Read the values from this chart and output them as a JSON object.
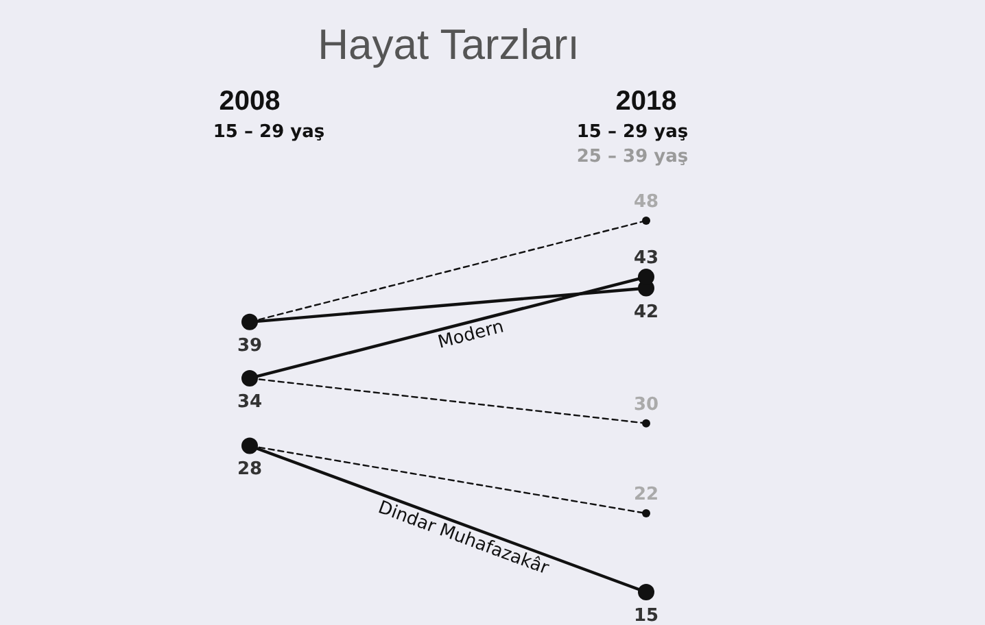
{
  "chart_data": {
    "type": "line",
    "title": "Hayat Tarzları",
    "categories": [
      "2008",
      "2018"
    ],
    "annotations": [
      "15 – 29 yaş",
      "15 – 29 yaş",
      "25 – 39 yaş"
    ],
    "tick_labels": "x",
    "series": [
      {
        "color": "#111111",
        "values": [
          39,
          42
        ],
        "value_labels": [
          "39",
          "42"
        ],
        "line_style": "solid",
        "marker": "circle"
      },
      {
        "name": "Modern",
        "color": "#111111",
        "values": [
          34,
          43
        ],
        "value_labels": [
          "34",
          "43"
        ],
        "line_style": "solid",
        "marker": "circle"
      },
      {
        "name": "Dindar Muhafazakâr",
        "color": "#111111",
        "values": [
          28,
          15
        ],
        "value_labels": [
          "28",
          "15"
        ],
        "line_style": "solid",
        "marker": "circle"
      },
      {
        "color": "#111111",
        "values": [
          39,
          48
        ],
        "value_labels": [
          null,
          "48"
        ],
        "line_style": "dashed",
        "marker": "circle"
      },
      {
        "color": "#111111",
        "values": [
          34,
          30
        ],
        "value_labels": [
          null,
          "30"
        ],
        "line_style": "dashed",
        "marker": "circle"
      },
      {
        "color": "#111111",
        "values": [
          28,
          22
        ],
        "value_labels": [
          null,
          "22"
        ],
        "line_style": "dashed",
        "marker": "circle"
      }
    ]
  }
}
